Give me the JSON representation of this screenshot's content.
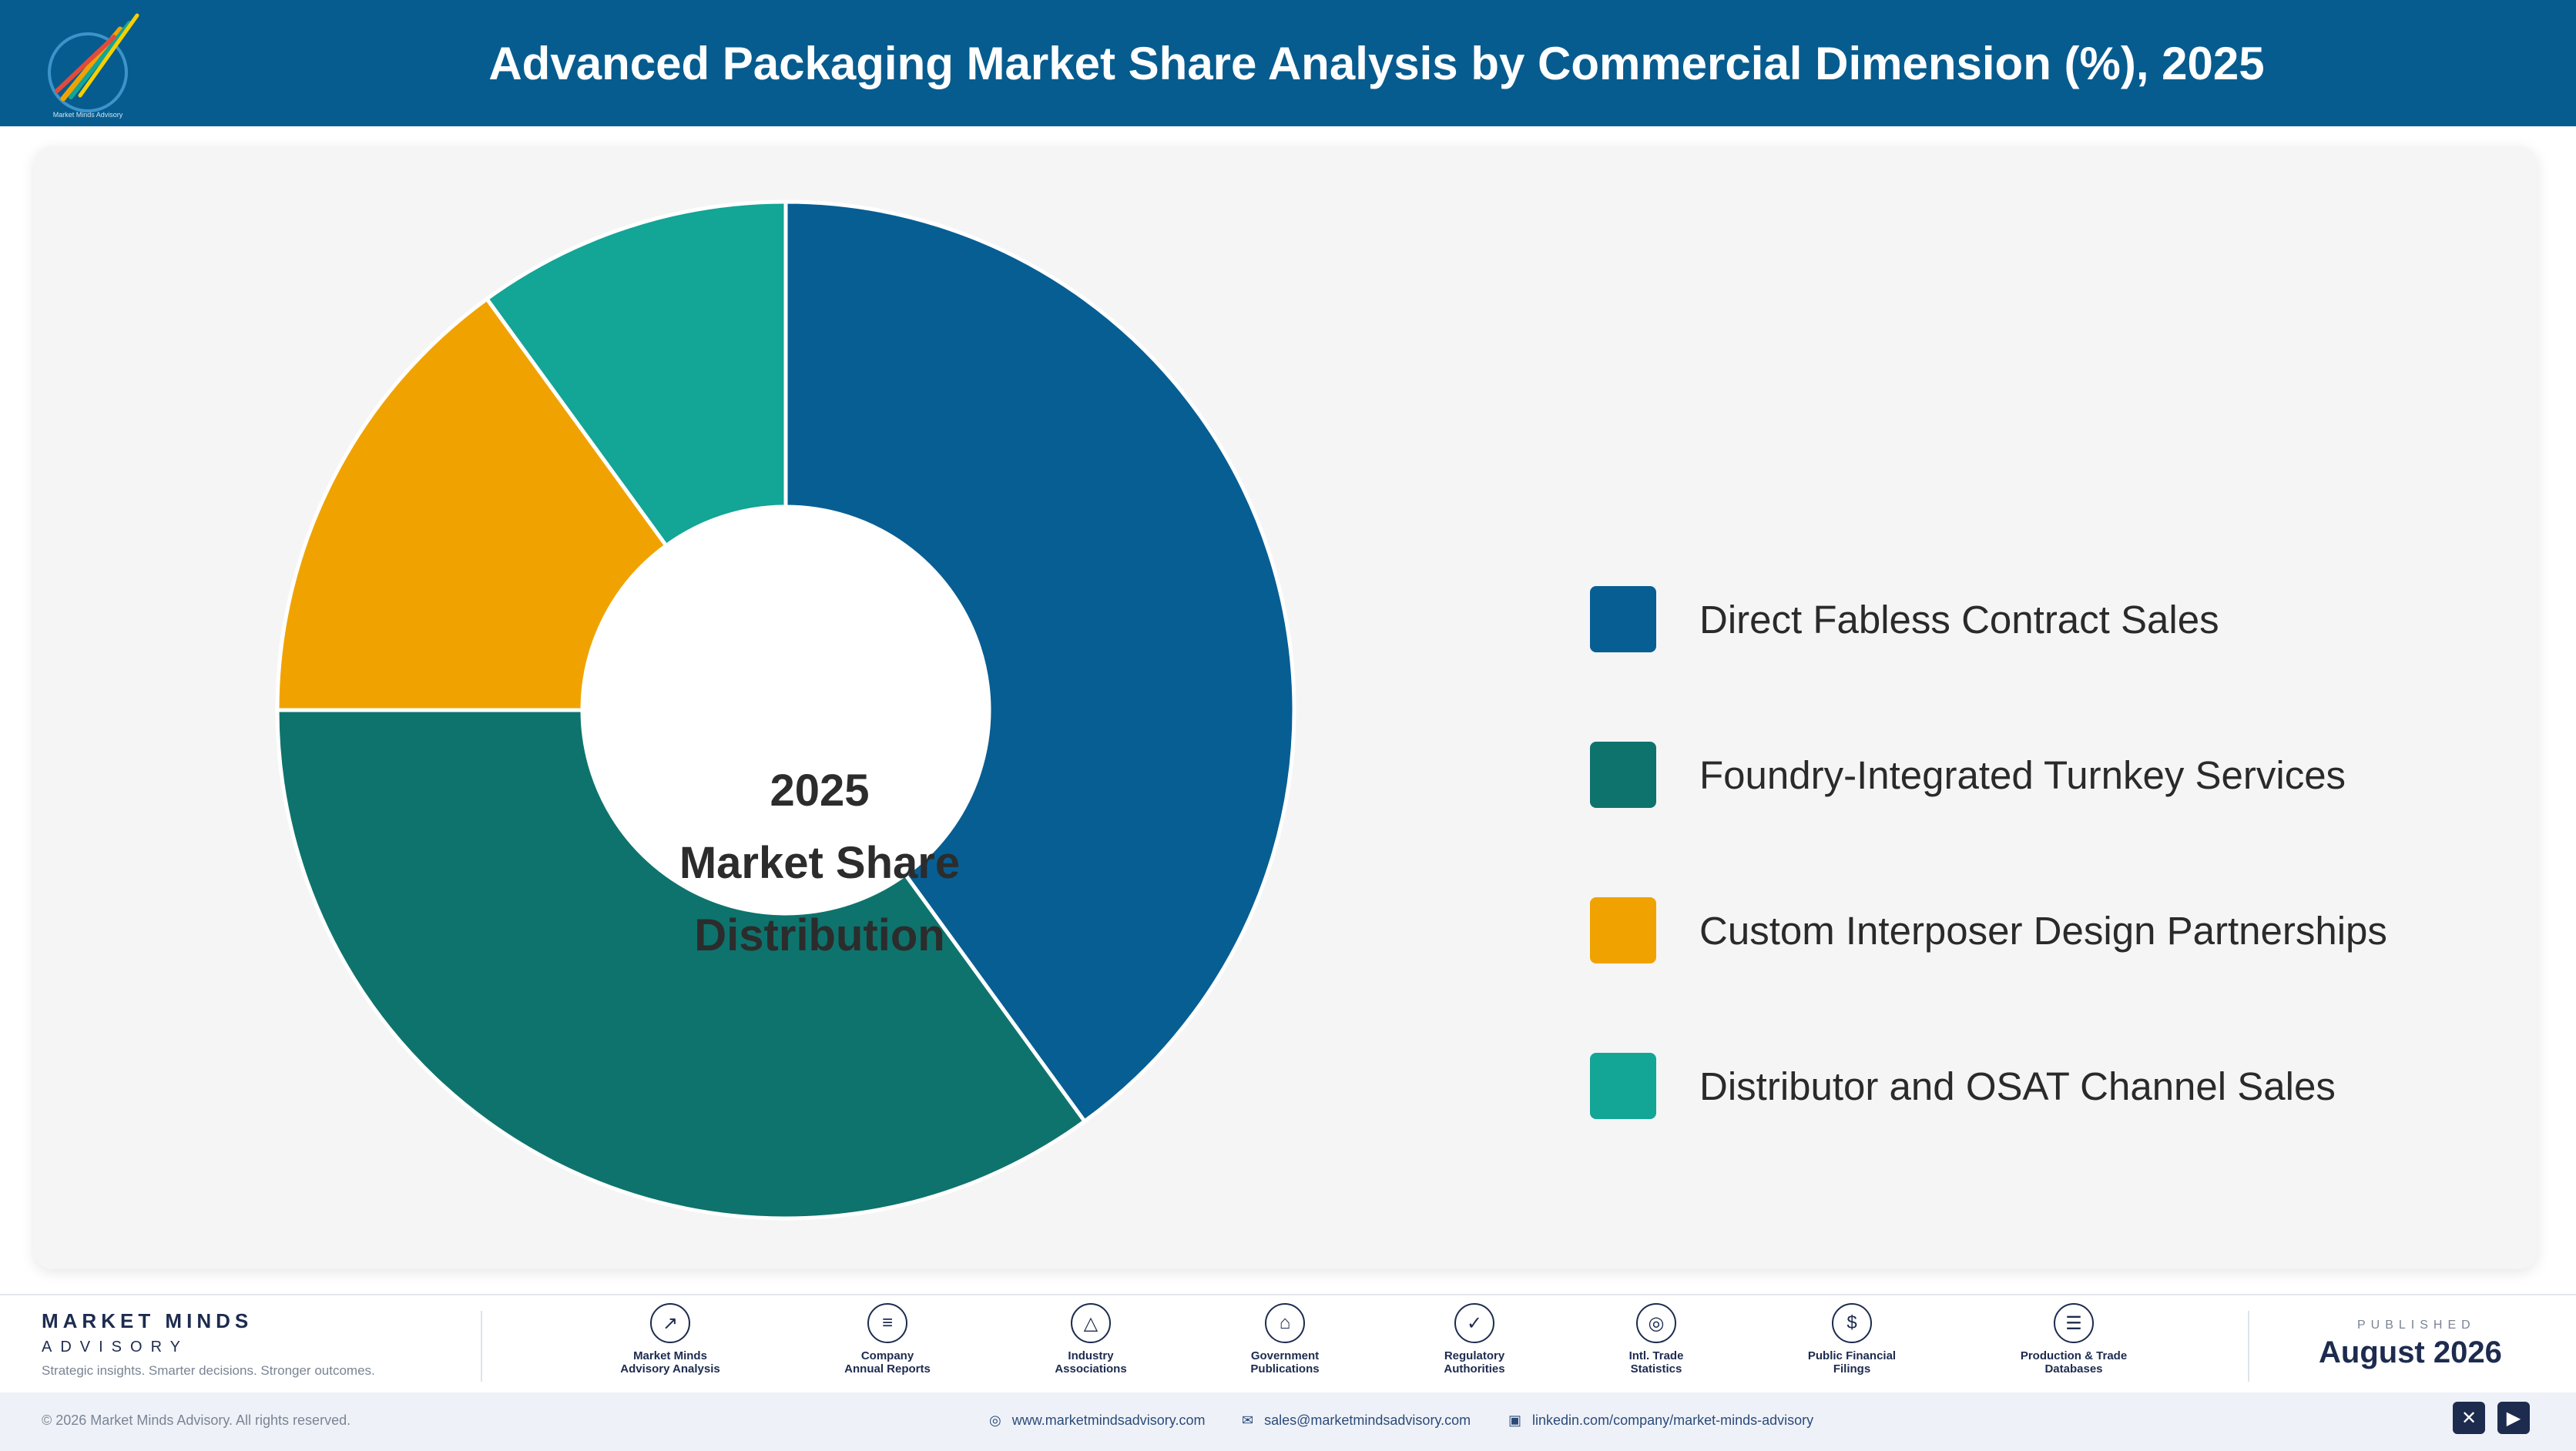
{
  "header": {
    "title": "Advanced Packaging Market Share Analysis by Commercial Dimension (%), 2025"
  },
  "logo": {
    "text": "Market Minds Advisory"
  },
  "chart_data": {
    "type": "pie",
    "donut": true,
    "title": "Advanced Packaging Market Share Analysis by Commercial Dimension (%), 2025",
    "center_label": [
      "2025",
      "Market Share",
      "Distribution"
    ],
    "categories": [
      "Direct Fabless Contract Sales",
      "Foundry-Integrated Turnkey Services",
      "Custom Interposer Design Partnerships",
      "Distributor and OSAT Channel Sales"
    ],
    "values": [
      40,
      35,
      15,
      10
    ],
    "colors": [
      "#075e93",
      "#0e736d",
      "#f0a300",
      "#13a596"
    ],
    "legend_position": "right"
  },
  "footer": {
    "brand_name": "MARKET MINDS",
    "brand_sub": "ADVISORY",
    "tagline": "Strategic insights. Smarter decisions. Stronger outcomes.",
    "sources": [
      {
        "line1": "Market Minds",
        "line2": "Advisory Analysis",
        "icon": "trend-icon",
        "glyph": "↗"
      },
      {
        "line1": "Company",
        "line2": "Annual Reports",
        "icon": "document-icon",
        "glyph": "≡"
      },
      {
        "line1": "Industry",
        "line2": "Associations",
        "icon": "network-icon",
        "glyph": "△"
      },
      {
        "line1": "Government",
        "line2": "Publications",
        "icon": "government-icon",
        "glyph": "⌂"
      },
      {
        "line1": "Regulatory",
        "line2": "Authorities",
        "icon": "shield-icon",
        "glyph": "✓"
      },
      {
        "line1": "Intl. Trade",
        "line2": "Statistics",
        "icon": "globe-icon",
        "glyph": "◎"
      },
      {
        "line1": "Public Financial",
        "line2": "Filings",
        "icon": "dollar-icon",
        "glyph": "$"
      },
      {
        "line1": "Production & Trade",
        "line2": "Databases",
        "icon": "database-icon",
        "glyph": "☰"
      }
    ],
    "published_label": "PUBLISHED",
    "published_date": "August 2026",
    "copyright": "© 2026 Market Minds Advisory. All rights reserved.",
    "website": "www.marketmindsadvisory.com",
    "email": "sales@marketmindsadvisory.com",
    "linkedin": "linkedin.com/company/market-minds-advisory"
  }
}
